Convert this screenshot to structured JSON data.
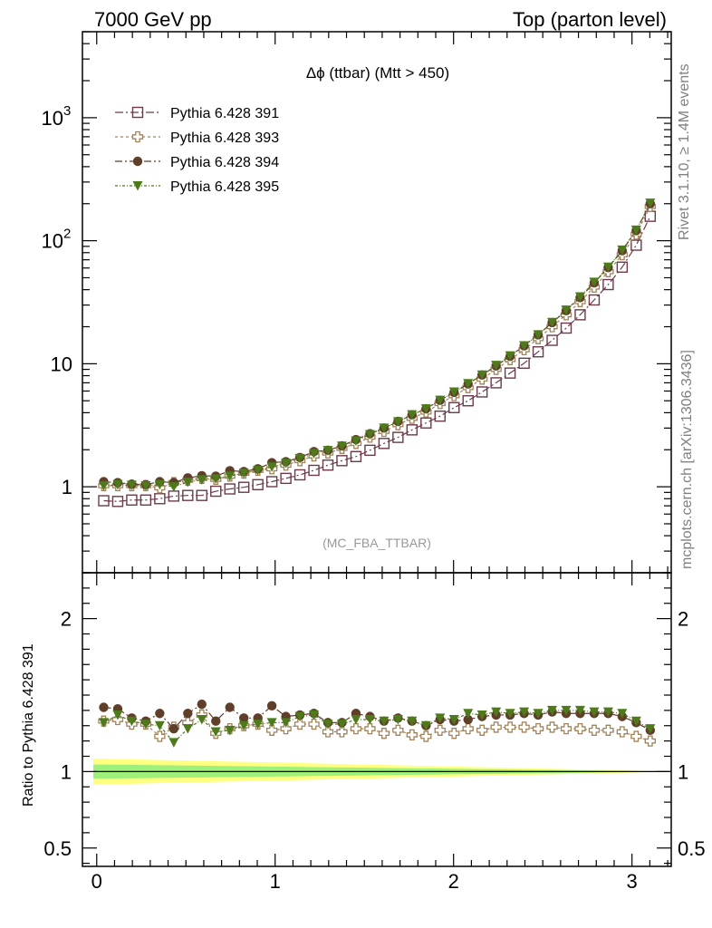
{
  "header": {
    "left": "7000 GeV pp",
    "right": "Top (parton level)"
  },
  "side_labels": {
    "rivet": "Rivet 3.1.10, ≥ 1.4M events",
    "mcplots": "mcplots.cern.ch [arXiv:1306.3436]"
  },
  "chart_data": [
    {
      "type": "line",
      "title": "Δϕ (ttbar) (Mtt > 450)",
      "annotation": "(MC_FBA_TTBAR)",
      "yscale": "log",
      "xlim": [
        -0.08,
        3.22
      ],
      "ylim": [
        0.2,
        5000
      ],
      "y_tick_labels": [
        "1",
        "10",
        "10²",
        "10³"
      ],
      "legend_position": "top-left",
      "x": [
        0.0393,
        0.1178,
        0.1963,
        0.2749,
        0.3534,
        0.432,
        0.5105,
        0.589,
        0.6676,
        0.7461,
        0.8247,
        0.9032,
        0.9817,
        1.0603,
        1.1388,
        1.2174,
        1.2959,
        1.3744,
        1.453,
        1.5315,
        1.6101,
        1.6886,
        1.7671,
        1.8457,
        1.9242,
        2.0028,
        2.0813,
        2.1598,
        2.2384,
        2.3169,
        2.3955,
        2.474,
        2.5525,
        2.6311,
        2.7096,
        2.7882,
        2.8667,
        2.9452,
        3.0238,
        3.1023
      ],
      "series": [
        {
          "name": "Pythia 6.428 391",
          "color": "#6b3a4b",
          "marker": "open-square",
          "values": [
            0.77,
            0.76,
            0.78,
            0.78,
            0.8,
            0.84,
            0.85,
            0.85,
            0.92,
            0.96,
            0.99,
            1.04,
            1.1,
            1.17,
            1.25,
            1.36,
            1.5,
            1.63,
            1.76,
            1.98,
            2.25,
            2.52,
            2.9,
            3.3,
            3.75,
            4.4,
            5.0,
            5.9,
            7.0,
            8.4,
            10.1,
            12.5,
            15.5,
            19.5,
            25.0,
            33.0,
            44.0,
            61.0,
            92.0,
            158.0
          ]
        },
        {
          "name": "Pythia 6.428 393",
          "color": "#a0835a",
          "marker": "open-cross",
          "values": [
            1.02,
            1.02,
            1.02,
            1.02,
            0.98,
            1.08,
            1.13,
            1.17,
            1.15,
            1.22,
            1.29,
            1.36,
            1.4,
            1.5,
            1.63,
            1.78,
            1.88,
            2.05,
            2.25,
            2.53,
            2.82,
            3.2,
            3.6,
            4.05,
            4.75,
            5.5,
            6.4,
            7.5,
            9.0,
            10.8,
            13.0,
            16.0,
            20.0,
            25.0,
            32.0,
            42.0,
            56.0,
            77.0,
            113.0,
            190.0
          ]
        },
        {
          "name": "Pythia 6.428 394",
          "color": "#603f2a",
          "marker": "filled-circle",
          "values": [
            1.1,
            1.08,
            1.05,
            1.04,
            1.1,
            1.08,
            1.18,
            1.23,
            1.22,
            1.35,
            1.33,
            1.4,
            1.57,
            1.6,
            1.73,
            1.93,
            1.98,
            2.15,
            2.42,
            2.7,
            3.0,
            3.4,
            3.85,
            4.3,
            5.05,
            5.85,
            6.85,
            8.1,
            9.6,
            11.5,
            14.0,
            17.2,
            21.6,
            27.0,
            34.5,
            45.5,
            60.5,
            83.0,
            121.0,
            200.0
          ]
        },
        {
          "name": "Pythia 6.428 395",
          "color": "#4e7a1c",
          "marker": "filled-triangle-down",
          "values": [
            1.02,
            1.04,
            1.03,
            1.02,
            1.04,
            1.0,
            1.09,
            1.14,
            1.16,
            1.22,
            1.29,
            1.36,
            1.45,
            1.55,
            1.7,
            1.86,
            1.97,
            2.14,
            2.36,
            2.66,
            3.0,
            3.38,
            3.85,
            4.3,
            5.05,
            5.9,
            6.9,
            8.1,
            9.7,
            11.6,
            14.0,
            17.2,
            21.7,
            27.3,
            35.0,
            46.0,
            61.0,
            84.0,
            122.0,
            202.0
          ]
        }
      ]
    },
    {
      "type": "line",
      "ylabel": "Ratio to Pythia 6.428 391",
      "ylim": [
        0.38,
        2.3
      ],
      "xlim": [
        -0.08,
        3.22
      ],
      "x_ticks": [
        0,
        1,
        2,
        3
      ],
      "y_ticks": [
        0.5,
        1,
        2
      ],
      "band": {
        "colors": [
          "#ffff80",
          "#9ef07a"
        ],
        "center": 1.0
      },
      "series": [
        {
          "name": "Pythia 6.428 393",
          "color": "#a0835a",
          "marker": "open-cross",
          "values": [
            1.33,
            1.34,
            1.31,
            1.31,
            1.23,
            1.29,
            1.32,
            1.37,
            1.25,
            1.28,
            1.3,
            1.31,
            1.27,
            1.28,
            1.31,
            1.31,
            1.26,
            1.26,
            1.28,
            1.28,
            1.25,
            1.27,
            1.24,
            1.23,
            1.27,
            1.25,
            1.28,
            1.27,
            1.29,
            1.29,
            1.29,
            1.28,
            1.29,
            1.28,
            1.28,
            1.27,
            1.27,
            1.26,
            1.23,
            1.2
          ]
        },
        {
          "name": "Pythia 6.428 394",
          "color": "#603f2a",
          "marker": "filled-circle",
          "values": [
            1.42,
            1.41,
            1.35,
            1.33,
            1.38,
            1.28,
            1.38,
            1.44,
            1.33,
            1.42,
            1.35,
            1.35,
            1.43,
            1.36,
            1.37,
            1.38,
            1.32,
            1.32,
            1.38,
            1.36,
            1.33,
            1.35,
            1.33,
            1.3,
            1.34,
            1.33,
            1.34,
            1.36,
            1.37,
            1.37,
            1.38,
            1.37,
            1.39,
            1.38,
            1.38,
            1.38,
            1.38,
            1.36,
            1.32,
            1.27
          ]
        },
        {
          "name": "Pythia 6.428 395",
          "color": "#4e7a1c",
          "marker": "filled-triangle-down",
          "values": [
            1.32,
            1.37,
            1.33,
            1.31,
            1.3,
            1.19,
            1.28,
            1.34,
            1.26,
            1.27,
            1.3,
            1.31,
            1.32,
            1.32,
            1.36,
            1.37,
            1.31,
            1.31,
            1.34,
            1.34,
            1.33,
            1.34,
            1.33,
            1.3,
            1.35,
            1.34,
            1.38,
            1.37,
            1.39,
            1.38,
            1.39,
            1.38,
            1.4,
            1.4,
            1.4,
            1.39,
            1.39,
            1.38,
            1.33,
            1.28
          ]
        }
      ]
    }
  ]
}
